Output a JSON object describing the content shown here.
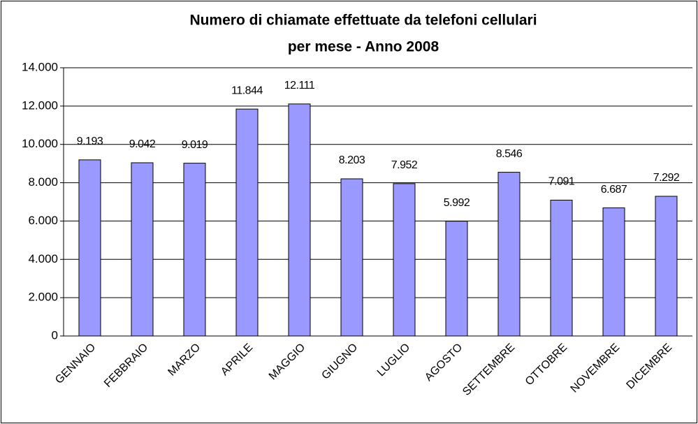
{
  "chart_data": {
    "type": "bar",
    "title": [
      "Numero di chiamate effettuate da telefoni cellulari",
      "per mese -  Anno 2008"
    ],
    "categories": [
      "GENNAIO",
      "FEBBRAIO",
      "MARZO",
      "APRILE",
      "MAGGIO",
      "GIUGNO",
      "LUGLIO",
      "AGOSTO",
      "SETTEMBRE",
      "OTTOBRE",
      "NOVEMBRE",
      "DICEMBRE"
    ],
    "values": [
      9193,
      9042,
      9019,
      11844,
      12111,
      8203,
      7952,
      5992,
      8546,
      7091,
      6687,
      7292
    ],
    "value_labels": [
      "9.193",
      "9.042",
      "9.019",
      "11.844",
      "12.111",
      "8.203",
      "7.952",
      "5.992",
      "8.546",
      "7.091",
      "6.687",
      "7.292"
    ],
    "color": "#9999ff",
    "ylim": [
      0,
      14000
    ],
    "yticks": [
      0,
      {
        "value": 2000,
        "label": "2.000"
      },
      {
        "value": 4000,
        "label": "4.000"
      },
      {
        "value": 6000,
        "label": "6.000"
      },
      {
        "value": 8000,
        "label": "8.000"
      },
      {
        "value": 10000,
        "label": "10.000"
      },
      {
        "value": 12000,
        "label": "12.000"
      },
      {
        "value": 14000,
        "label": "14.000"
      }
    ],
    "grid": true
  }
}
